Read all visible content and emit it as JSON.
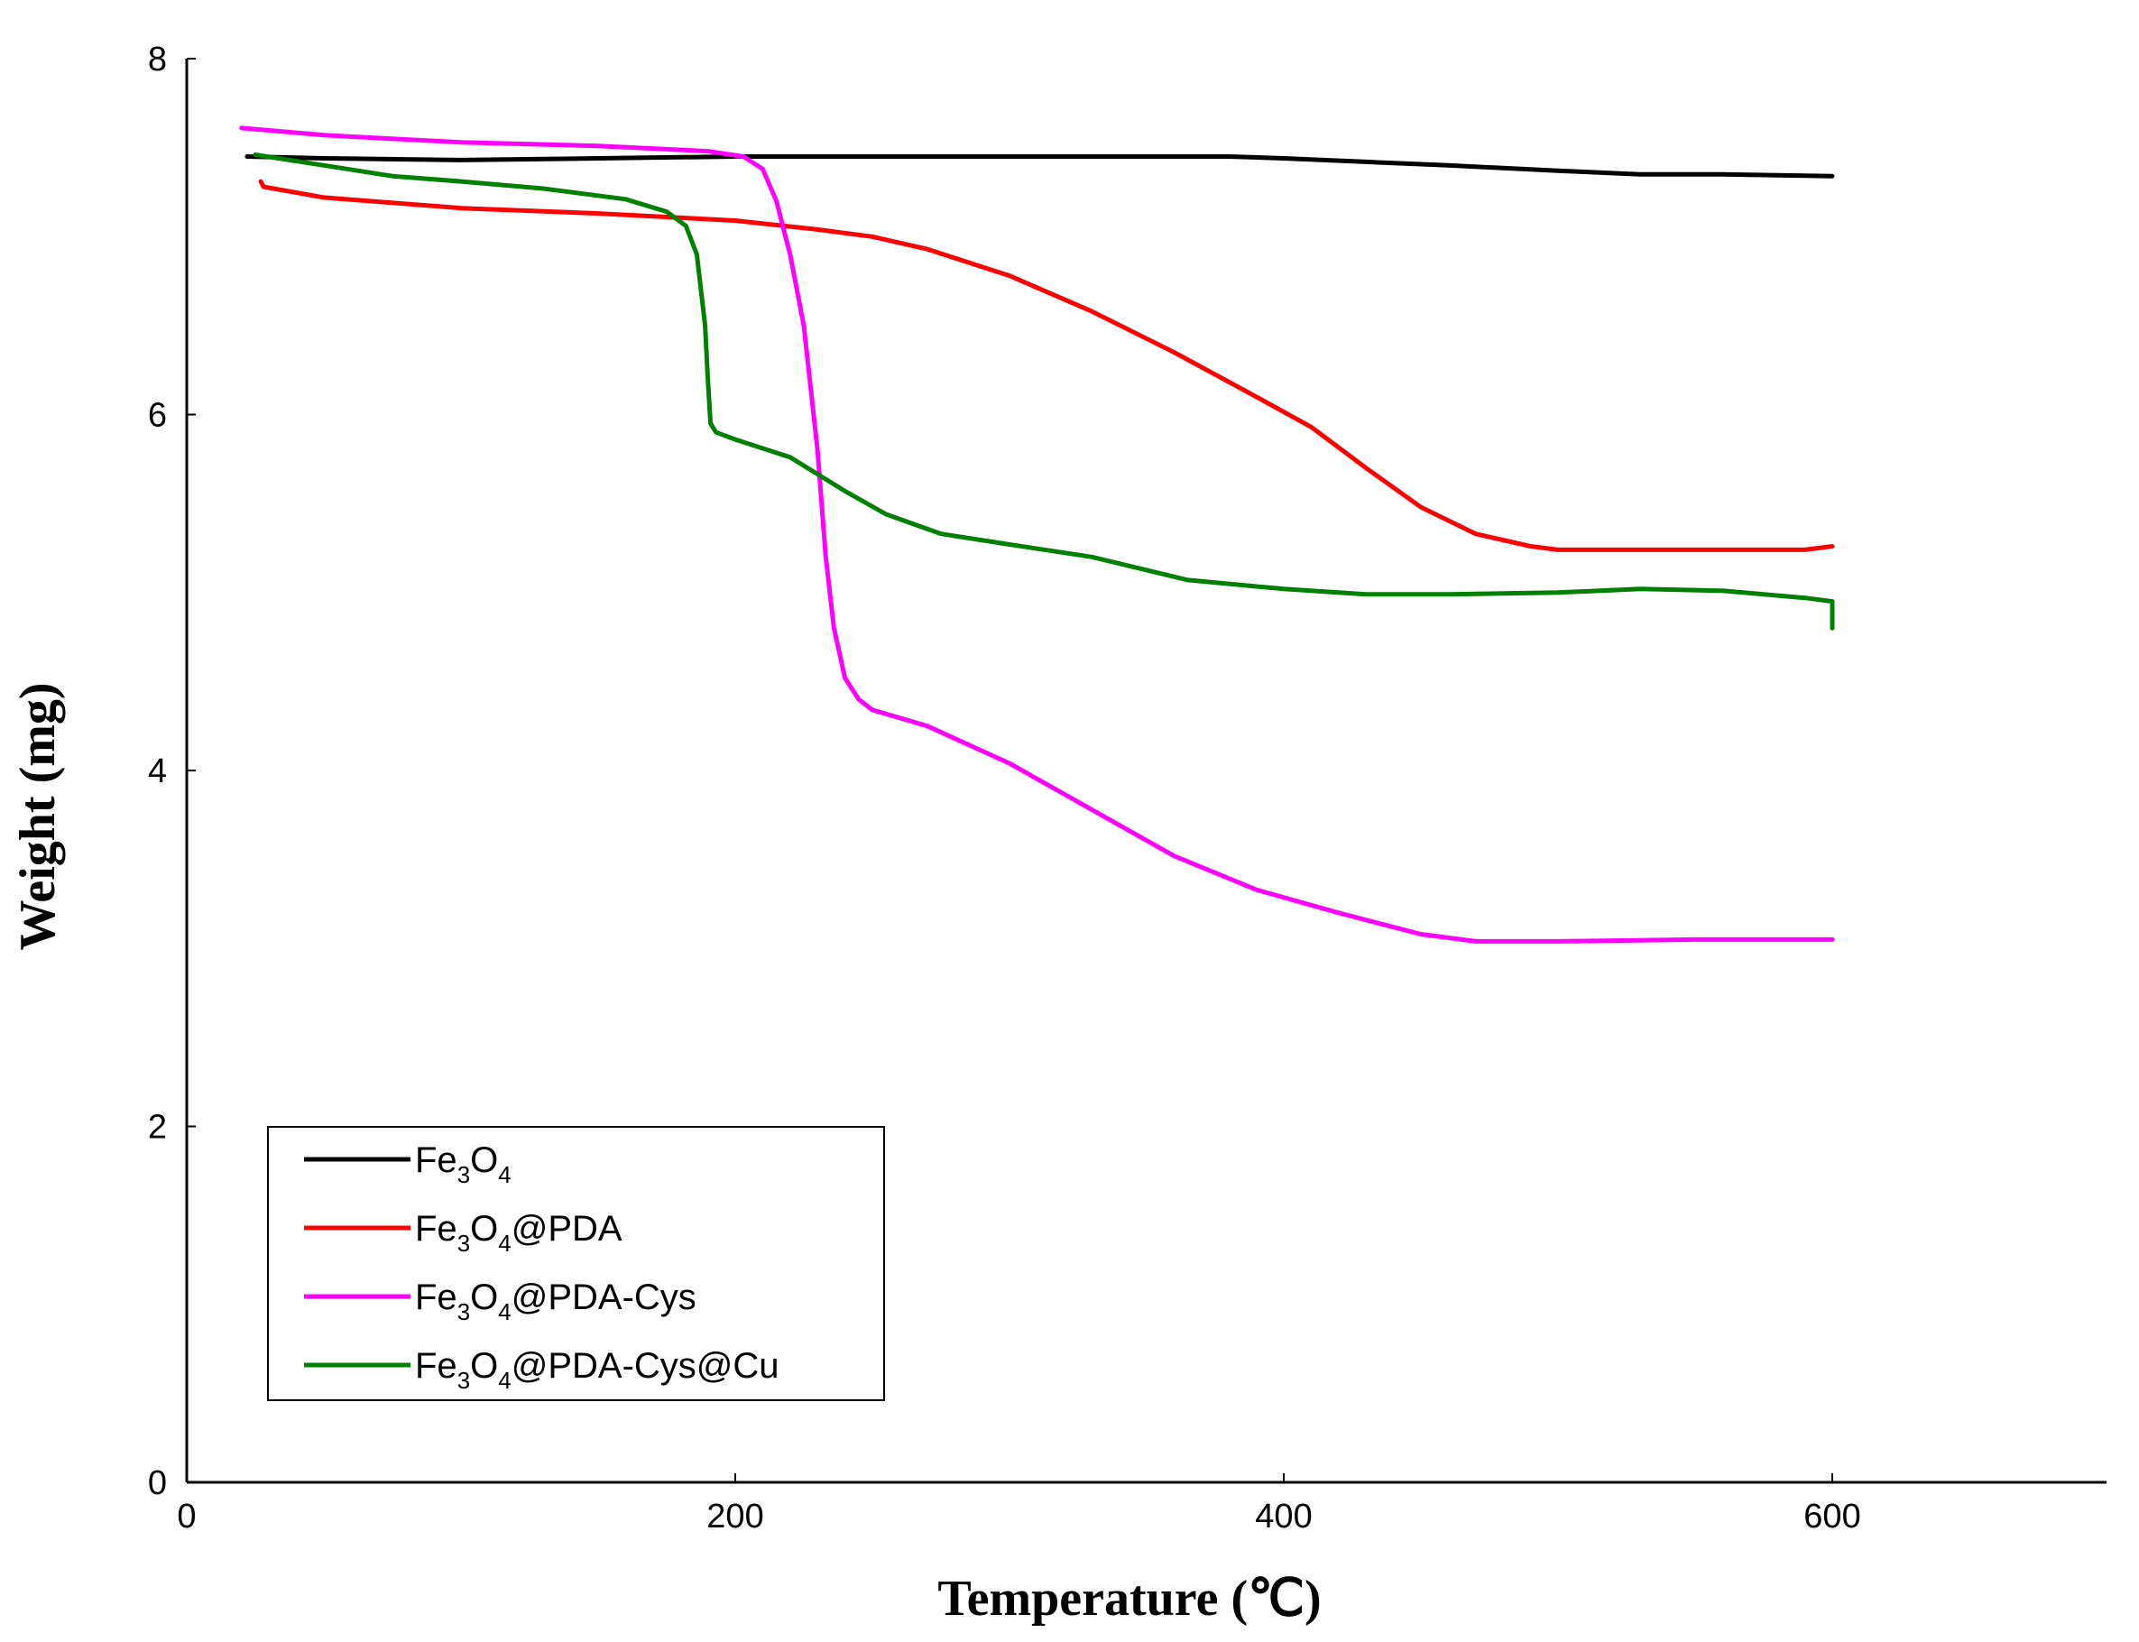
{
  "chart_data": {
    "type": "line",
    "title": "",
    "xlabel": "Temperature (℃)",
    "ylabel": "Weight (mg)",
    "xlim": [
      0,
      700
    ],
    "ylim": [
      0,
      8
    ],
    "xticks": [
      0,
      200,
      400,
      600
    ],
    "yticks": [
      0,
      2,
      4,
      6,
      8
    ],
    "grid": false,
    "legend_position": "bottom-left",
    "series": [
      {
        "name": "Fe3O4",
        "label_parts": [
          "Fe",
          "3",
          "O",
          "4",
          ""
        ],
        "color": "#000000",
        "points": [
          [
            22,
            7.45
          ],
          [
            50,
            7.44
          ],
          [
            100,
            7.43
          ],
          [
            150,
            7.44
          ],
          [
            200,
            7.45
          ],
          [
            250,
            7.45
          ],
          [
            300,
            7.45
          ],
          [
            350,
            7.45
          ],
          [
            380,
            7.45
          ],
          [
            400,
            7.44
          ],
          [
            430,
            7.42
          ],
          [
            460,
            7.4
          ],
          [
            500,
            7.37
          ],
          [
            530,
            7.35
          ],
          [
            560,
            7.35
          ],
          [
            600,
            7.34
          ]
        ]
      },
      {
        "name": "Fe3O4@PDA",
        "label_parts": [
          "Fe",
          "3",
          "O",
          "4",
          "@PDA"
        ],
        "color": "#ff0000",
        "points": [
          [
            27,
            7.31
          ],
          [
            28,
            7.28
          ],
          [
            50,
            7.22
          ],
          [
            100,
            7.16
          ],
          [
            150,
            7.13
          ],
          [
            200,
            7.09
          ],
          [
            230,
            7.04
          ],
          [
            250,
            7.0
          ],
          [
            270,
            6.93
          ],
          [
            300,
            6.78
          ],
          [
            330,
            6.58
          ],
          [
            360,
            6.35
          ],
          [
            390,
            6.1
          ],
          [
            410,
            5.93
          ],
          [
            430,
            5.7
          ],
          [
            450,
            5.48
          ],
          [
            470,
            5.33
          ],
          [
            490,
            5.26
          ],
          [
            500,
            5.24
          ],
          [
            550,
            5.24
          ],
          [
            590,
            5.24
          ],
          [
            600,
            5.26
          ]
        ]
      },
      {
        "name": "Fe3O4@PDA-Cys",
        "label_parts": [
          "Fe",
          "3",
          "O",
          "4",
          "@PDA-Cys"
        ],
        "color": "#ff00ff",
        "points": [
          [
            20,
            7.61
          ],
          [
            50,
            7.57
          ],
          [
            100,
            7.53
          ],
          [
            150,
            7.51
          ],
          [
            190,
            7.48
          ],
          [
            203,
            7.45
          ],
          [
            210,
            7.38
          ],
          [
            215,
            7.2
          ],
          [
            220,
            6.9
          ],
          [
            225,
            6.5
          ],
          [
            230,
            5.8
          ],
          [
            233,
            5.2
          ],
          [
            236,
            4.8
          ],
          [
            240,
            4.52
          ],
          [
            245,
            4.4
          ],
          [
            250,
            4.34
          ],
          [
            270,
            4.25
          ],
          [
            300,
            4.04
          ],
          [
            330,
            3.78
          ],
          [
            360,
            3.52
          ],
          [
            390,
            3.33
          ],
          [
            420,
            3.2
          ],
          [
            450,
            3.08
          ],
          [
            470,
            3.04
          ],
          [
            500,
            3.04
          ],
          [
            550,
            3.05
          ],
          [
            600,
            3.05
          ]
        ]
      },
      {
        "name": "Fe3O4@PDA-Cys@Cu",
        "label_parts": [
          "Fe",
          "3",
          "O",
          "4",
          "@PDA-Cys@Cu"
        ],
        "color": "#008000",
        "points": [
          [
            25,
            7.46
          ],
          [
            50,
            7.4
          ],
          [
            75,
            7.34
          ],
          [
            100,
            7.31
          ],
          [
            130,
            7.27
          ],
          [
            160,
            7.21
          ],
          [
            175,
            7.14
          ],
          [
            182,
            7.06
          ],
          [
            186,
            6.9
          ],
          [
            189,
            6.5
          ],
          [
            190,
            6.2
          ],
          [
            191,
            5.95
          ],
          [
            193,
            5.9
          ],
          [
            200,
            5.86
          ],
          [
            220,
            5.76
          ],
          [
            240,
            5.57
          ],
          [
            255,
            5.44
          ],
          [
            275,
            5.33
          ],
          [
            300,
            5.27
          ],
          [
            330,
            5.2
          ],
          [
            365,
            5.07
          ],
          [
            400,
            5.02
          ],
          [
            430,
            4.99
          ],
          [
            460,
            4.99
          ],
          [
            500,
            5.0
          ],
          [
            530,
            5.02
          ],
          [
            560,
            5.01
          ],
          [
            590,
            4.97
          ],
          [
            600,
            4.95
          ],
          [
            600,
            4.8
          ]
        ]
      }
    ]
  }
}
